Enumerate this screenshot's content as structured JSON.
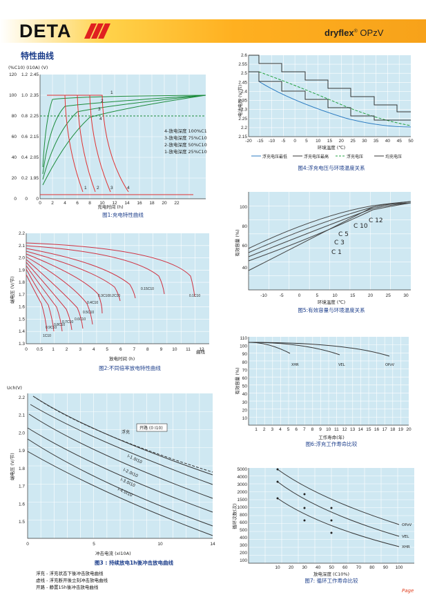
{
  "header": {
    "brand": "DETA",
    "product_bold": "dryflex",
    "product_reg": "®",
    "product_rest": " OPzV"
  },
  "section_title": "特性曲线",
  "fig1": {
    "caption": "图1:充电特性曲线",
    "xlabel": "充电时间 (h)",
    "ylabel_top": "(%C10) (I10A) (V)",
    "x_ticks": [
      "0",
      "2",
      "4",
      "6",
      "8",
      "10",
      "12",
      "14",
      "16",
      "18",
      "20",
      "22"
    ],
    "y_pct": [
      "120",
      "100",
      "80",
      "60",
      "40",
      "20",
      "0"
    ],
    "y_i": [
      "1.2",
      "1.0",
      "0.8",
      "0.6",
      "0.4",
      "0.2",
      "0"
    ],
    "y_v": [
      "2.45",
      "2.35",
      "2.25",
      "2.15",
      "2.05",
      "1.95",
      "0"
    ],
    "legend": [
      "4-放电深度 100%C10",
      "3-放电深度 75%C10",
      "2-放电深度 50%C10",
      "1-放电深度 25%C10"
    ],
    "curve_labels": [
      "1",
      "2",
      "3",
      "4"
    ]
  },
  "fig2": {
    "caption": "图2:不同倍率放电特性曲线",
    "ylabel": "端电压 (V/节)",
    "xlabel": "放电时间 (h)",
    "xunit": "曲线",
    "x_ticks": [
      "0",
      "0.5",
      "1",
      "2",
      "3",
      "4",
      "5",
      "6",
      "7",
      "8",
      "9",
      "10",
      "11",
      "12"
    ],
    "y_ticks": [
      "2.2",
      "2.1",
      "2.0",
      "1.9",
      "1.8",
      "1.7",
      "1.6",
      "1.5",
      "1.4",
      "1.3"
    ],
    "rates": [
      "1C10",
      "0.9C10",
      "0.8C10",
      "0.7C10",
      "0.6C10",
      "0.5C10",
      "0.4C10",
      "0.3C10",
      "0.2C10",
      "0.15C10",
      "0.1C10"
    ]
  },
  "fig3": {
    "caption": "图3 : 持续放电1h後冲击放电曲线",
    "ylabel": "端电压 (V/节)",
    "ytop": "Uch(V)",
    "xlabel": "冲击电流 (xI10A)",
    "x_ticks": [
      "0",
      "5",
      "10",
      "14"
    ],
    "y_ticks": [
      "2.2",
      "2.1",
      "2.0",
      "1.9",
      "1.8",
      "1.7",
      "1.6",
      "1.5"
    ],
    "labels": [
      "浮充",
      "开路 (0 I10)",
      "I-1.0I10",
      "I-2.0I10",
      "I-3.0I10",
      "I-4.0I10"
    ]
  },
  "footnotes": [
    "浮充 - 浮充状态下後冲击放电曲线",
    "虚线 - 浮充断开後立刻冲击放电曲线",
    "开路 - 静置15h後冲击放电曲线"
  ],
  "fig4": {
    "caption": "图4:浮充电压与环境温度关系",
    "ylabel": "电池电压 (V/节)",
    "xlabel": "环境温度 (℃)",
    "x_ticks": [
      "-20",
      "-15",
      "-10",
      "-5",
      "0",
      "5",
      "10",
      "15",
      "20",
      "25",
      "30",
      "35",
      "40",
      "45",
      "50"
    ],
    "y_ticks": [
      "2.6",
      "2.55",
      "2.5",
      "2.45",
      "2.4",
      "2.35",
      "2.3",
      "2.25",
      "2.2",
      "2.15"
    ],
    "legend": [
      "浮充电压最低",
      "浮充电压最高",
      "浮充电压",
      "均充电压"
    ]
  },
  "fig5": {
    "caption": "图5:有效容量与环境温度关系",
    "ylabel": "有效容量 (%)",
    "xlabel": "环境温度 (℃)",
    "x_ticks": [
      "-10",
      "-5",
      "0",
      "5",
      "10",
      "15",
      "20",
      "25",
      "30"
    ],
    "y_ticks": [
      "100",
      "80",
      "60",
      "40"
    ],
    "labels": [
      "C 12",
      "C 10",
      "C 5",
      "C 3",
      "C 1"
    ]
  },
  "fig6": {
    "caption": "图6:浮充工作寿命比较",
    "ylabel": "有效容量 (%)",
    "xlabel": "工作寿命(年)",
    "x_ticks": [
      "1",
      "2",
      "3",
      "4",
      "5",
      "6",
      "7",
      "8",
      "9",
      "10",
      "11",
      "12",
      "13",
      "14",
      "15",
      "16",
      "17",
      "18",
      "19",
      "20"
    ],
    "y_ticks": [
      "110",
      "100",
      "90",
      "80",
      "70",
      "60",
      "50",
      "40",
      "30",
      "20",
      "10"
    ],
    "labels": [
      "XHR",
      "VEL",
      "OPzV"
    ]
  },
  "fig7": {
    "caption": "图7: 循环工作寿命比较",
    "ylabel": "循环次数(次)",
    "xlabel": "放电深度 (C10%)",
    "x_ticks": [
      "10",
      "20",
      "30",
      "40",
      "50",
      "60",
      "70",
      "80",
      "90",
      "100"
    ],
    "y_ticks": [
      "5000",
      "4000",
      "3000",
      "2000",
      "1500",
      "1000",
      "800",
      "600",
      "500",
      "400",
      "300",
      "200",
      "100"
    ],
    "labels": [
      "OPzV",
      "VEL",
      "XHR"
    ]
  },
  "page_mark": "Page"
}
